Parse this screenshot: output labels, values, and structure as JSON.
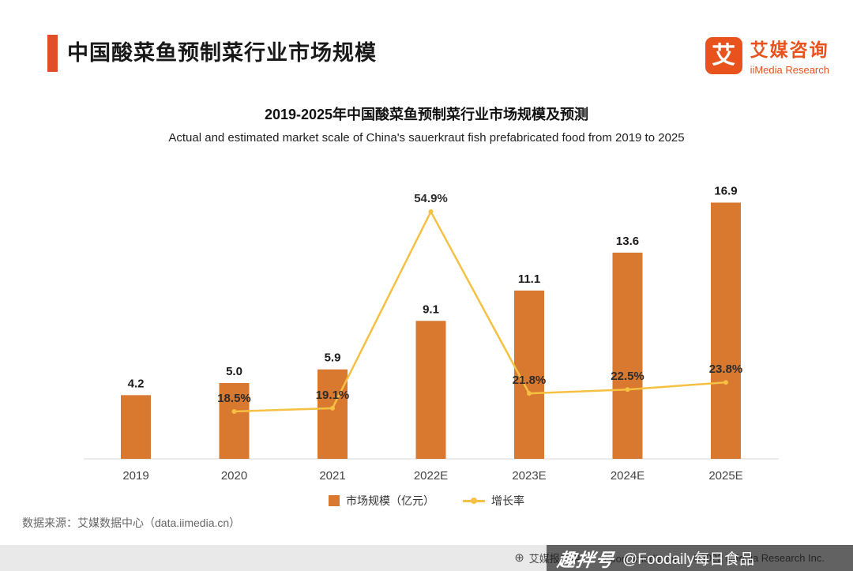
{
  "header": {
    "title": "中国酸菜鱼预制菜行业市场规模",
    "logo": {
      "mark": "艾",
      "name": "艾媒咨询",
      "subtitle": "iiMedia Research"
    }
  },
  "chart": {
    "title": "2019-2025年中国酸菜鱼预制菜行业市场规模及预测",
    "subtitle": "Actual and estimated market scale of China's sauerkraut fish prefabricated food from 2019 to 2025"
  },
  "chart_data": {
    "type": "bar+line",
    "categories": [
      "2019",
      "2020",
      "2021",
      "2022E",
      "2023E",
      "2024E",
      "2025E"
    ],
    "series": [
      {
        "name": "市场规模（亿元）",
        "type": "bar",
        "color": "#d9782f",
        "values": [
          4.2,
          5.0,
          5.9,
          9.1,
          11.1,
          13.6,
          16.9
        ],
        "labels": [
          "4.2",
          "5.0",
          "5.9",
          "9.1",
          "11.1",
          "13.6",
          "16.9"
        ]
      },
      {
        "name": "增长率",
        "type": "line",
        "color": "#f6c143",
        "unit": "%",
        "values": [
          null,
          18.5,
          19.1,
          54.9,
          21.8,
          22.5,
          23.8
        ],
        "labels": [
          null,
          "18.5%",
          "19.1%",
          "54.9%",
          "21.8%",
          "22.5%",
          "23.8%"
        ]
      }
    ],
    "grid": false,
    "legend_position": "bottom"
  },
  "footer": {
    "source": "数据来源：艾媒数据中心（data.iimedia.cn）",
    "report_center": "艾媒报告中心：report.iimedia.cn",
    "copyright": "©2022 iiMedia Research Inc.",
    "watermark_brand": "趣拌号",
    "watermark_account": "@Foodaily每日食品"
  },
  "colors": {
    "accent": "#e04f27",
    "logo": "#e8521c",
    "bar": "#d9782f",
    "line": "#f6c143",
    "bottom_bar_bg": "#e9e9e9"
  }
}
